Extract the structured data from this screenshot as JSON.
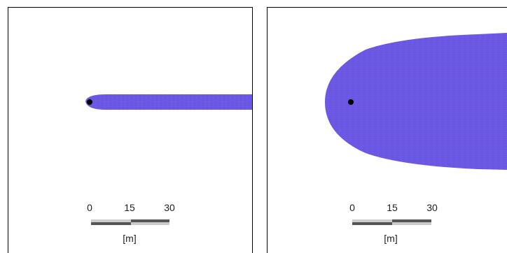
{
  "colors": {
    "plume_fill": "#6a5ae8",
    "plume_streak": "#7a3fb8",
    "source_dot": "#000000",
    "bar_dark": "#555555",
    "bar_light": "#cccccc"
  },
  "panels": [
    {
      "id": "left",
      "scalebar": {
        "ticks": [
          "0",
          "15",
          "30"
        ],
        "unit": "[m]"
      }
    },
    {
      "id": "right",
      "scalebar": {
        "ticks": [
          "0",
          "15",
          "30"
        ],
        "unit": "[m]"
      }
    }
  ]
}
